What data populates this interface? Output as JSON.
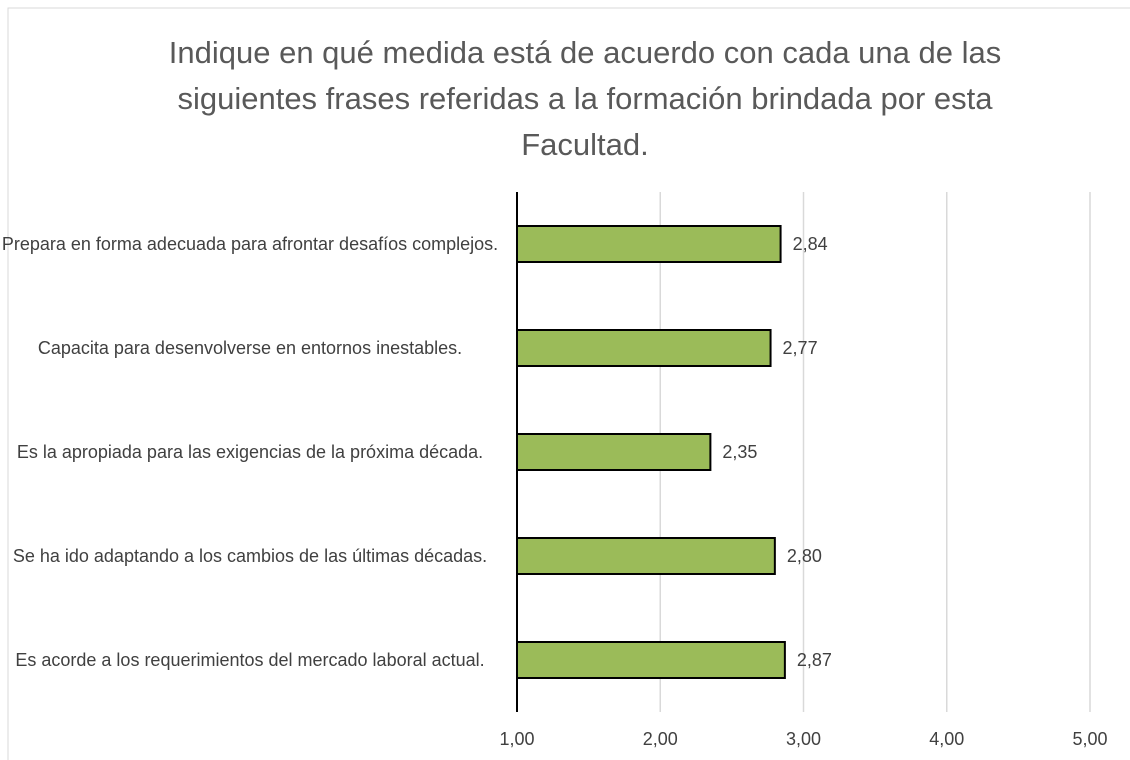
{
  "chart_data": {
    "type": "barh",
    "title": "Indique en qué medida está de acuerdo con cada una de las siguientes frases referidas a la formación brindada por esta Facultad.",
    "categories": [
      "Prepara en forma adecuada para afrontar desafíos complejos.",
      "Capacita para desenvolverse en entornos inestables.",
      "Es la apropiada para las exigencias de la próxima década.",
      "Se ha ido adaptando a los cambios de las últimas décadas.",
      "Es acorde a los requerimientos del mercado laboral actual."
    ],
    "values": [
      2.84,
      2.77,
      2.35,
      2.8,
      2.87
    ],
    "value_labels": [
      "2,84",
      "2,77",
      "2,35",
      "2,80",
      "2,87"
    ],
    "color": "#9bbb59",
    "xlim": [
      1,
      5
    ],
    "xticks": [
      {
        "value": 1,
        "label": "1,00"
      },
      {
        "value": 2,
        "label": "2,00"
      },
      {
        "value": 3,
        "label": "3,00"
      },
      {
        "value": 4,
        "label": "4,00"
      },
      {
        "value": 5,
        "label": "5,00"
      }
    ],
    "grid": true
  }
}
